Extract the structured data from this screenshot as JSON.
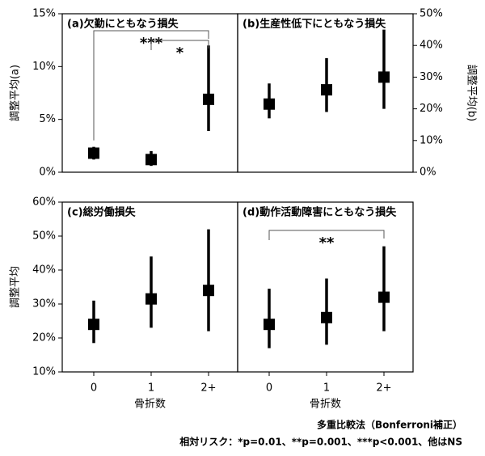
{
  "chart_data": [
    {
      "type": "errorbar",
      "title": "(a)欠勤にともなう損失",
      "ylabel": "調整平均(a)",
      "yaxis_side": "left",
      "values": [
        1.8,
        1.2,
        6.9
      ],
      "lower": [
        1.2,
        0.6,
        3.9
      ],
      "upper": [
        2.4,
        2.0,
        12.0
      ],
      "ylim": [
        0,
        15
      ],
      "yticks": [
        {
          "value": 0,
          "label": "0%"
        },
        {
          "value": 5,
          "label": "5%"
        },
        {
          "value": 10,
          "label": "10%"
        },
        {
          "value": 15,
          "label": "15%"
        }
      ],
      "brackets": [
        {
          "from": 0,
          "to": 2,
          "label": "***"
        },
        {
          "from": 1,
          "to": 2,
          "label": "*"
        }
      ],
      "color": "#000000"
    },
    {
      "type": "errorbar",
      "title": "(b)生産性低下にともなう損失",
      "ylabel": "調整平均(b)",
      "yaxis_side": "right",
      "values": [
        21.5,
        26,
        30
      ],
      "lower": [
        17,
        19,
        20
      ],
      "upper": [
        28,
        36,
        45
      ],
      "ylim": [
        0,
        50
      ],
      "yticks": [
        {
          "value": 0,
          "label": "0%"
        },
        {
          "value": 10,
          "label": "10%"
        },
        {
          "value": 20,
          "label": "20%"
        },
        {
          "value": 30,
          "label": "30%"
        },
        {
          "value": 40,
          "label": "40%"
        },
        {
          "value": 50,
          "label": "50%"
        }
      ],
      "color": "#000000"
    },
    {
      "type": "errorbar",
      "title": "(c)総労働損失",
      "ylabel": "調整平均",
      "yaxis_side": "left",
      "categories": [
        "0",
        "1",
        "2+"
      ],
      "xlabel": "骨折数",
      "values": [
        24,
        31.5,
        34
      ],
      "lower": [
        18.5,
        23,
        22
      ],
      "upper": [
        31,
        44,
        52
      ],
      "ylim": [
        10,
        60
      ],
      "yticks": [
        {
          "value": 10,
          "label": "10%"
        },
        {
          "value": 20,
          "label": "20%"
        },
        {
          "value": 30,
          "label": "30%"
        },
        {
          "value": 40,
          "label": "40%"
        },
        {
          "value": 50,
          "label": "50%"
        },
        {
          "value": 60,
          "label": "60%"
        }
      ],
      "color": "#000000"
    },
    {
      "type": "errorbar",
      "title": "(d)動作活動障害にともなう損失",
      "categories": [
        "0",
        "1",
        "2+"
      ],
      "xlabel": "骨折数",
      "values": [
        24,
        26,
        32
      ],
      "lower": [
        17,
        18,
        22
      ],
      "upper": [
        34.5,
        37.5,
        47
      ],
      "ylim": [
        10,
        60
      ],
      "brackets": [
        {
          "from": 0,
          "to": 2,
          "label": "**"
        }
      ],
      "color": "#000000"
    }
  ],
  "footnotes": [
    "多重比較法（Bonferroni補正）",
    "相対リスク：*p=0.01、**p=0.001、***p<0.001、他はNS"
  ]
}
